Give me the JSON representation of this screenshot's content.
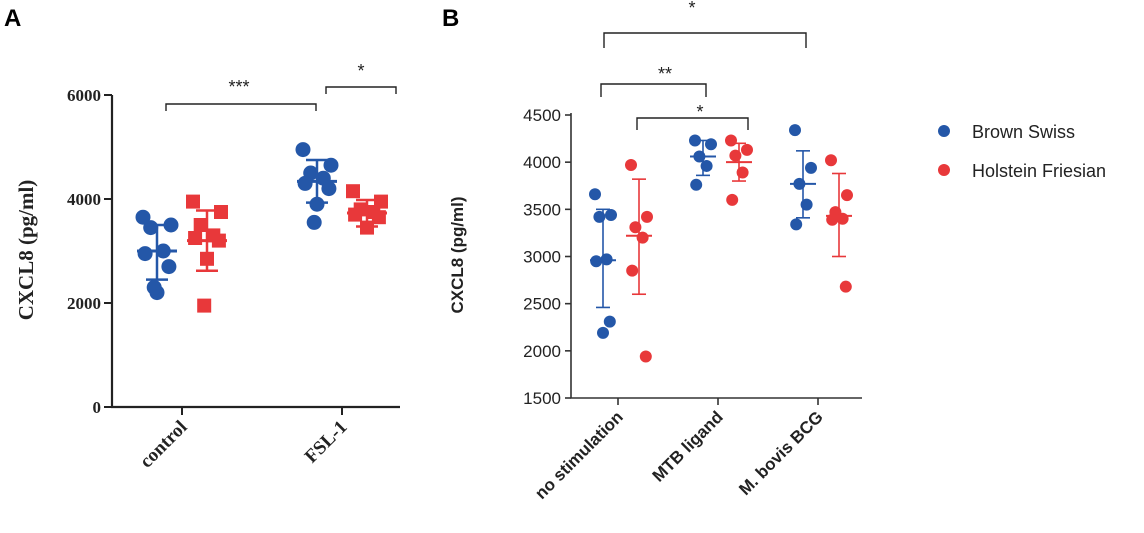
{
  "panels": {
    "a_label": "A",
    "b_label": "B"
  },
  "colors": {
    "brown_swiss": "#2457a8",
    "holstein_friesian": "#e8383a"
  },
  "chart_data": [
    {
      "type": "scatter",
      "panel": "A",
      "ylabel": "CXCL8 (pg/ml)",
      "ylim": [
        0,
        6000
      ],
      "yticks": [
        "0",
        "2000",
        "4000",
        "6000"
      ],
      "categories": [
        "control",
        "FSL-1"
      ],
      "series": [
        {
          "name": "Brown Swiss",
          "marker": "circle",
          "groups": [
            {
              "category": "control",
              "points": [
                3650,
                3500,
                3450,
                3000,
                2950,
                2700,
                2200,
                2300
              ],
              "mean": 3000,
              "sd_low": 2450,
              "sd_high": 3500
            },
            {
              "category": "FSL-1",
              "points": [
                4950,
                4650,
                4500,
                4400,
                4300,
                4200,
                3900,
                3550
              ],
              "mean": 4340,
              "sd_low": 3930,
              "sd_high": 4750
            }
          ]
        },
        {
          "name": "Holstein Friesian",
          "marker": "square",
          "groups": [
            {
              "category": "control",
              "points": [
                3950,
                3750,
                3500,
                3300,
                3250,
                3200,
                2850,
                1950
              ],
              "mean": 3200,
              "sd_low": 2620,
              "sd_high": 3780
            },
            {
              "category": "FSL-1",
              "points": [
                4150,
                3950,
                3800,
                3750,
                3700,
                3650,
                3450
              ],
              "mean": 3730,
              "sd_low": 3470,
              "sd_high": 3980
            }
          ]
        }
      ],
      "significance": [
        {
          "label": "***",
          "between": "control vs FSL-1 (Brown Swiss)"
        },
        {
          "label": "*",
          "between": "FSL-1 Brown Swiss vs Holstein Friesian"
        }
      ]
    },
    {
      "type": "scatter",
      "panel": "B",
      "ylabel": "CXCL8 (pg/ml)",
      "ylim": [
        1500,
        4500
      ],
      "yticks": [
        "1500",
        "2000",
        "2500",
        "3000",
        "3500",
        "4000",
        "4500"
      ],
      "categories": [
        "no stimulation",
        "MTB ligand",
        "M. bovis BCG"
      ],
      "series": [
        {
          "name": "Brown Swiss",
          "marker": "circle",
          "groups": [
            {
              "category": "no stimulation",
              "points": [
                3660,
                3440,
                3420,
                2970,
                2950,
                2310,
                2190
              ],
              "mean": 2960,
              "sd_low": 2460,
              "sd_high": 3500
            },
            {
              "category": "MTB ligand",
              "points": [
                4230,
                4190,
                4060,
                3960,
                3760
              ],
              "mean": 4060,
              "sd_low": 3860,
              "sd_high": 4230
            },
            {
              "category": "M. bovis BCG",
              "points": [
                4340,
                3940,
                3770,
                3550,
                3340
              ],
              "mean": 3770,
              "sd_low": 3410,
              "sd_high": 4120
            }
          ]
        },
        {
          "name": "Holstein Friesian",
          "marker": "circle",
          "groups": [
            {
              "category": "no stimulation",
              "points": [
                3970,
                3420,
                3310,
                3200,
                2850,
                1940
              ],
              "mean": 3220,
              "sd_low": 2600,
              "sd_high": 3820
            },
            {
              "category": "MTB ligand",
              "points": [
                4230,
                4130,
                4070,
                3890,
                3600
              ],
              "mean": 4000,
              "sd_low": 3800,
              "sd_high": 4200
            },
            {
              "category": "M. bovis BCG",
              "points": [
                4020,
                3650,
                3470,
                3400,
                3390,
                2680
              ],
              "mean": 3430,
              "sd_low": 3000,
              "sd_high": 3880
            }
          ]
        }
      ],
      "significance": [
        {
          "label": "*",
          "between": "no stimulation vs M. bovis BCG"
        },
        {
          "label": "**",
          "between": "no stimulation vs MTB ligand (Brown Swiss)"
        },
        {
          "label": "*",
          "between": "no stimulation vs MTB ligand (Holstein Friesian)"
        }
      ],
      "legend": [
        "Brown Swiss",
        "Holstein Friesian"
      ]
    }
  ]
}
